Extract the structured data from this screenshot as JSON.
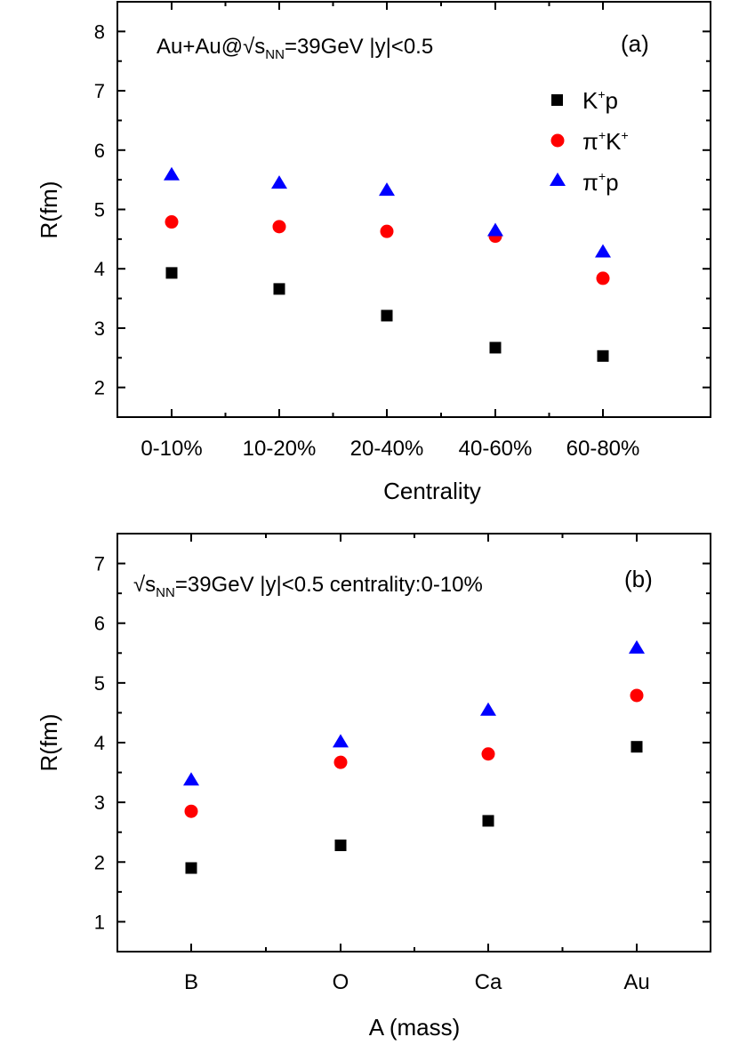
{
  "chart_data": [
    {
      "type": "scatter",
      "panel_label": "(a)",
      "annotation": {
        "main": "Au+Au@",
        "root": "√",
        "s": "s",
        "sub": "NN",
        "rest": "=39GeV |y|<0.5"
      },
      "xlabel": "Centrality",
      "ylabel": "R(fm)",
      "ylim": [
        1.5,
        8.5
      ],
      "yticks": [
        "2",
        "3",
        "4",
        "5",
        "6",
        "7",
        "8"
      ],
      "categories": [
        "0-10%",
        "10-20%",
        "20-40%",
        "40-60%",
        "60-80%"
      ],
      "legend_position": "top-right",
      "series": [
        {
          "name": "K+p",
          "label_main1": "K",
          "label_sup1": "+",
          "label_main2": "p",
          "label_sup2": "",
          "marker": "square",
          "color": "#000000",
          "values": [
            3.93,
            3.66,
            3.21,
            2.67,
            2.53
          ]
        },
        {
          "name": "π+K+",
          "label_main1": "π",
          "label_sup1": "+",
          "label_main2": "K",
          "label_sup2": "+",
          "marker": "circle",
          "color": "#ff0000",
          "values": [
            4.79,
            4.71,
            4.63,
            4.55,
            3.84
          ]
        },
        {
          "name": "π+p",
          "label_main1": "π",
          "label_sup1": "+",
          "label_main2": "p",
          "label_sup2": "",
          "marker": "triangle",
          "color": "#0000ff",
          "values": [
            5.58,
            5.44,
            5.32,
            4.64,
            4.28
          ]
        }
      ]
    },
    {
      "type": "scatter",
      "panel_label": "(b)",
      "annotation": {
        "main": "",
        "root": "√",
        "s": "s",
        "sub": "NN",
        "rest": "=39GeV |y|<0.5 centrality:0-10%"
      },
      "xlabel": "A (mass)",
      "ylabel": "R(fm)",
      "ylim": [
        0.5,
        7.5
      ],
      "yticks": [
        "1",
        "2",
        "3",
        "4",
        "5",
        "6",
        "7"
      ],
      "categories": [
        "B",
        "O",
        "Ca",
        "Au"
      ],
      "series": [
        {
          "name": "K+p",
          "marker": "square",
          "color": "#000000",
          "values": [
            1.9,
            2.28,
            2.69,
            3.93
          ]
        },
        {
          "name": "π+K+",
          "marker": "circle",
          "color": "#ff0000",
          "values": [
            2.85,
            3.67,
            3.81,
            4.79
          ]
        },
        {
          "name": "π+p",
          "marker": "triangle",
          "color": "#0000ff",
          "values": [
            3.37,
            4.01,
            4.54,
            5.58
          ]
        }
      ]
    }
  ]
}
